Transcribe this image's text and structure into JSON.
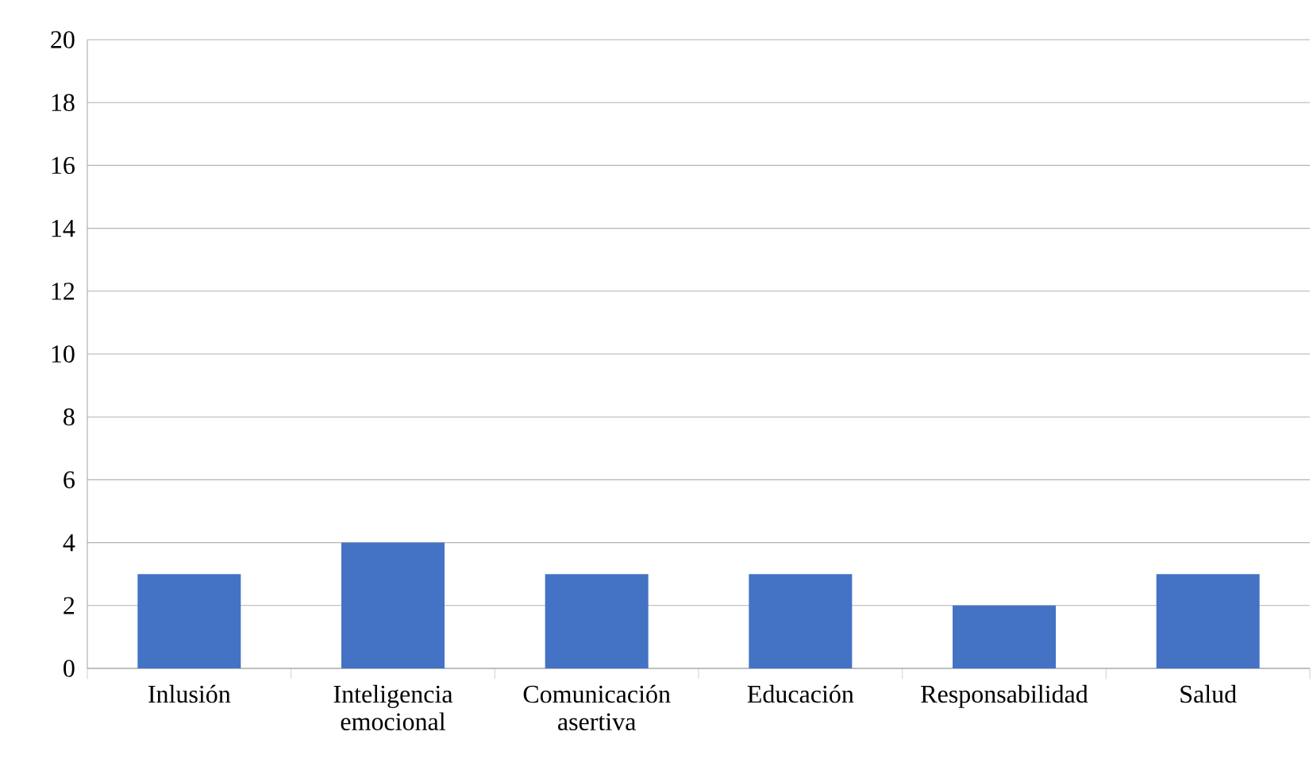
{
  "chart_data": {
    "type": "bar",
    "categories": [
      "Inlusión",
      "Inteligencia emocional",
      "Comunicación asertiva",
      "Educación",
      "Responsabilidad",
      "Salud"
    ],
    "values": [
      3,
      4,
      3,
      3,
      2,
      3
    ],
    "color": "#4472c4",
    "ylim": [
      0,
      20
    ],
    "yticks": [
      0,
      2,
      4,
      6,
      8,
      10,
      12,
      14,
      16,
      18,
      20
    ],
    "grid": "y"
  }
}
